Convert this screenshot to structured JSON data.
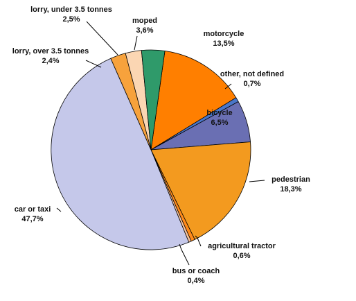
{
  "chart_data": {
    "type": "pie",
    "title": "",
    "unit": "%",
    "slices": [
      {
        "label": "motorcycle",
        "value": 13.5,
        "display": "13,5%",
        "color": "#ff7f00"
      },
      {
        "label": "other, not defined",
        "value": 0.7,
        "display": "0,7%",
        "color": "#4a76c8"
      },
      {
        "label": "bicycle",
        "value": 6.5,
        "display": "6,5%",
        "color": "#6a6fb3"
      },
      {
        "label": "pedestrian",
        "value": 18.3,
        "display": "18,3%",
        "color": "#f39a1f"
      },
      {
        "label": "agricultural tractor",
        "value": 0.6,
        "display": "0,6%",
        "color": "#ff8a1a"
      },
      {
        "label": "bus or coach",
        "value": 0.4,
        "display": "0,4%",
        "color": "#f6c39e"
      },
      {
        "label": "car or taxi",
        "value": 47.7,
        "display": "47,7%",
        "color": "#c5c8ea"
      },
      {
        "label": "lorry, over 3.5 tonnes",
        "value": 2.4,
        "display": "2,4%",
        "color": "#f7a23c"
      },
      {
        "label": "lorry, under 3.5 tonnes",
        "value": 2.5,
        "display": "2,5%",
        "color": "#fbd6b3"
      },
      {
        "label": "moped",
        "value": 3.6,
        "display": "3,6%",
        "color": "#2f9a6a"
      }
    ],
    "legend": "none",
    "labels": "outside with leader lines"
  }
}
